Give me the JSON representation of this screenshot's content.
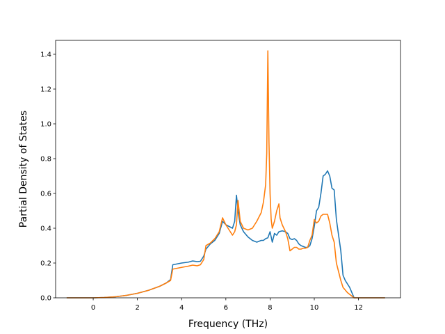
{
  "chart_data": {
    "type": "line",
    "title": "",
    "xlabel": "Frequency (THz)",
    "ylabel": "Partial Density of States",
    "xlim": [
      -1.7,
      13.9
    ],
    "ylim": [
      0.0,
      1.48
    ],
    "xticks": [
      0,
      2,
      4,
      6,
      8,
      10,
      12
    ],
    "xtick_labels": [
      "0",
      "2",
      "4",
      "6",
      "8",
      "10",
      "12"
    ],
    "yticks": [
      0.0,
      0.2,
      0.4,
      0.6,
      0.8,
      1.0,
      1.2,
      1.4
    ],
    "ytick_labels": [
      "0.0",
      "0.2",
      "0.4",
      "0.6",
      "0.8",
      "1.0",
      "1.2",
      "1.4"
    ],
    "grid": false,
    "legend": "none",
    "series": [
      {
        "color": "#1f77b4",
        "x": [
          -1.2,
          0.0,
          0.5,
          1.0,
          1.5,
          2.0,
          2.5,
          3.0,
          3.3,
          3.5,
          3.6,
          3.8,
          4.0,
          4.3,
          4.5,
          4.7,
          4.85,
          5.0,
          5.1,
          5.3,
          5.5,
          5.7,
          5.85,
          6.0,
          6.15,
          6.3,
          6.4,
          6.48,
          6.55,
          6.65,
          6.8,
          7.0,
          7.2,
          7.4,
          7.6,
          7.7,
          7.8,
          7.9,
          8.0,
          8.1,
          8.2,
          8.3,
          8.4,
          8.55,
          8.7,
          8.8,
          8.9,
          9.0,
          9.1,
          9.2,
          9.3,
          9.4,
          9.5,
          9.6,
          9.7,
          9.8,
          9.9,
          10.0,
          10.1,
          10.2,
          10.3,
          10.4,
          10.5,
          10.6,
          10.7,
          10.8,
          10.9,
          11.0,
          11.1,
          11.2,
          11.3,
          11.4,
          11.5,
          11.6,
          11.8,
          12.0,
          12.2,
          12.5,
          13.2
        ],
        "y": [
          0.0,
          0.0,
          0.002,
          0.006,
          0.014,
          0.026,
          0.043,
          0.066,
          0.085,
          0.105,
          0.19,
          0.195,
          0.2,
          0.205,
          0.212,
          0.208,
          0.21,
          0.24,
          0.28,
          0.31,
          0.33,
          0.37,
          0.44,
          0.42,
          0.41,
          0.4,
          0.44,
          0.59,
          0.5,
          0.42,
          0.38,
          0.35,
          0.33,
          0.32,
          0.33,
          0.33,
          0.34,
          0.345,
          0.38,
          0.32,
          0.37,
          0.36,
          0.38,
          0.385,
          0.38,
          0.37,
          0.34,
          0.335,
          0.34,
          0.33,
          0.31,
          0.3,
          0.295,
          0.29,
          0.29,
          0.3,
          0.34,
          0.41,
          0.5,
          0.52,
          0.6,
          0.7,
          0.71,
          0.73,
          0.7,
          0.63,
          0.62,
          0.45,
          0.36,
          0.27,
          0.13,
          0.1,
          0.08,
          0.06,
          0.0,
          0.0,
          0.0,
          0.0,
          0.0
        ]
      },
      {
        "color": "#ff7f0e",
        "x": [
          -1.2,
          0.0,
          0.5,
          1.0,
          1.5,
          2.0,
          2.5,
          3.0,
          3.3,
          3.5,
          3.6,
          3.8,
          4.0,
          4.3,
          4.5,
          4.7,
          4.85,
          5.0,
          5.1,
          5.3,
          5.5,
          5.7,
          5.85,
          6.0,
          6.15,
          6.3,
          6.4,
          6.48,
          6.55,
          6.65,
          6.8,
          7.0,
          7.2,
          7.4,
          7.6,
          7.7,
          7.8,
          7.85,
          7.9,
          7.95,
          8.0,
          8.05,
          8.1,
          8.2,
          8.3,
          8.4,
          8.45,
          8.55,
          8.7,
          8.8,
          8.9,
          9.0,
          9.1,
          9.2,
          9.3,
          9.4,
          9.5,
          9.6,
          9.7,
          9.8,
          9.9,
          10.0,
          10.1,
          10.2,
          10.3,
          10.4,
          10.5,
          10.6,
          10.7,
          10.8,
          10.9,
          11.0,
          11.1,
          11.2,
          11.3,
          11.4,
          11.5,
          11.6,
          11.8,
          12.0,
          12.2,
          12.5,
          13.2
        ],
        "y": [
          0.0,
          0.0,
          0.002,
          0.006,
          0.014,
          0.026,
          0.043,
          0.066,
          0.085,
          0.1,
          0.165,
          0.17,
          0.175,
          0.182,
          0.188,
          0.184,
          0.19,
          0.22,
          0.3,
          0.315,
          0.34,
          0.38,
          0.46,
          0.42,
          0.39,
          0.36,
          0.38,
          0.42,
          0.56,
          0.44,
          0.4,
          0.39,
          0.4,
          0.44,
          0.49,
          0.55,
          0.65,
          0.83,
          1.42,
          0.9,
          0.6,
          0.45,
          0.4,
          0.44,
          0.5,
          0.54,
          0.46,
          0.42,
          0.38,
          0.34,
          0.27,
          0.28,
          0.29,
          0.29,
          0.28,
          0.28,
          0.285,
          0.285,
          0.29,
          0.33,
          0.36,
          0.45,
          0.43,
          0.44,
          0.47,
          0.48,
          0.48,
          0.48,
          0.43,
          0.36,
          0.32,
          0.2,
          0.15,
          0.1,
          0.06,
          0.045,
          0.03,
          0.02,
          0.0,
          0.0,
          0.0,
          0.0,
          0.0
        ]
      }
    ]
  }
}
